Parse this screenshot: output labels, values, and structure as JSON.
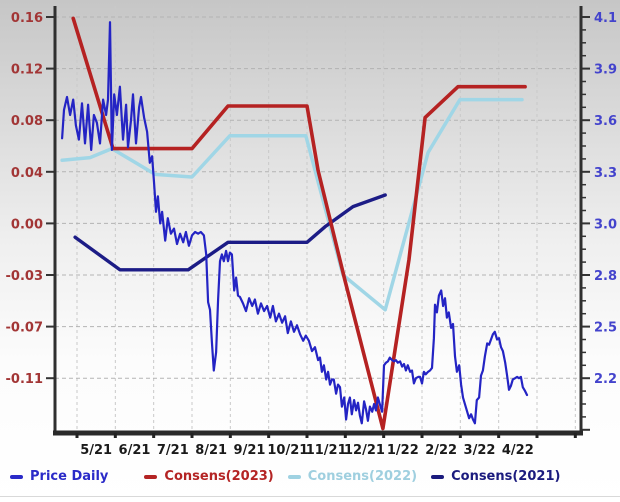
{
  "chart_data": {
    "type": "line",
    "title": "",
    "x_axis": {
      "labels": [
        "5/21",
        "6/21",
        "7/21",
        "8/21",
        "9/21",
        "10/21",
        "11/21",
        "12/21",
        "1/22",
        "2/22",
        "3/22",
        "4/22"
      ]
    },
    "y_axis_left": {
      "labels": [
        "0.16",
        "0.12",
        "0.08",
        "0.04",
        "0.00",
        "-0.03",
        "-0.07",
        "-0.11"
      ],
      "values": [
        0.16,
        0.12,
        0.08,
        0.04,
        0.0,
        -0.03,
        -0.07,
        -0.11
      ],
      "color": "#a23535"
    },
    "y_axis_right": {
      "labels": [
        "4.1",
        "3.9",
        "3.6",
        "3.3",
        "3.0",
        "2.8",
        "2.5",
        "2.2"
      ],
      "color": "#4343cc"
    },
    "grid": true,
    "legend_position": "bottom",
    "legend": [
      {
        "id": "price-daily",
        "label": "Price Daily",
        "color": "#2a2ac8",
        "text_color": "#2a2ac8"
      },
      {
        "id": "consens-2023",
        "label": "Consens(2023)",
        "color": "#b42424",
        "text_color": "#b42424"
      },
      {
        "id": "consens-2022",
        "label": "Consens(2022)",
        "color": "#9fd2e2",
        "text_color": "#9fcfdf"
      },
      {
        "id": "consens-2021",
        "label": "Consens(2021)",
        "color": "#1b1b7e",
        "text_color": "#1b1b7e"
      }
    ],
    "series": [
      {
        "id": "consens-2022",
        "name": "Consens(2022)",
        "color": "#a0d6e6",
        "width": 3.5,
        "points": [
          [
            -0.39,
            0.049
          ],
          [
            0.34,
            0.051
          ],
          [
            0.91,
            0.058
          ],
          [
            2.04,
            0.038
          ],
          [
            3.0,
            0.036
          ],
          [
            3.99,
            0.068
          ],
          [
            5.97,
            0.068
          ],
          [
            6.94,
            -0.03
          ],
          [
            8.04,
            -0.057
          ],
          [
            9.16,
            0.055
          ],
          [
            9.99,
            0.096
          ],
          [
            11.61,
            0.096
          ]
        ]
      },
      {
        "id": "consens-2021",
        "name": "Consens(2021)",
        "color": "#1c1c86",
        "width": 3.4,
        "points": [
          [
            -0.05,
            -0.008
          ],
          [
            1.12,
            -0.027
          ],
          [
            2.9,
            -0.027
          ],
          [
            3.94,
            -0.011
          ],
          [
            6.0,
            -0.011
          ],
          [
            6.47,
            -0.002
          ],
          [
            7.2,
            0.013
          ],
          [
            8.04,
            0.022
          ]
        ]
      },
      {
        "id": "consens-2023",
        "name": "Consens(2023)",
        "color": "#b52222",
        "width": 3.6,
        "points": [
          [
            -0.1,
            0.159
          ],
          [
            0.94,
            0.058
          ],
          [
            3.0,
            0.058
          ],
          [
            3.94,
            0.091
          ],
          [
            6.0,
            0.091
          ],
          [
            6.29,
            0.041
          ],
          [
            6.99,
            -0.034
          ],
          [
            7.98,
            -0.149
          ],
          [
            8.66,
            -0.021
          ],
          [
            9.08,
            0.082
          ],
          [
            9.94,
            0.106
          ],
          [
            11.69,
            0.106
          ]
        ]
      },
      {
        "id": "price-daily",
        "name": "Price Daily",
        "color": "#2424c4",
        "width": 2.2,
        "points": [
          [
            -0.39,
            0.066
          ],
          [
            -0.34,
            0.088
          ],
          [
            -0.26,
            0.098
          ],
          [
            -0.18,
            0.084
          ],
          [
            -0.1,
            0.096
          ],
          [
            -0.03,
            0.076
          ],
          [
            0.05,
            0.065
          ],
          [
            0.13,
            0.093
          ],
          [
            0.21,
            0.062
          ],
          [
            0.29,
            0.092
          ],
          [
            0.37,
            0.057
          ],
          [
            0.44,
            0.084
          ],
          [
            0.52,
            0.078
          ],
          [
            0.6,
            0.062
          ],
          [
            0.68,
            0.096
          ],
          [
            0.76,
            0.084
          ],
          [
            0.81,
            0.096
          ],
          [
            0.86,
            0.156
          ],
          [
            0.91,
            0.057
          ],
          [
            0.97,
            0.1
          ],
          [
            1.04,
            0.084
          ],
          [
            1.12,
            0.106
          ],
          [
            1.2,
            0.065
          ],
          [
            1.28,
            0.092
          ],
          [
            1.33,
            0.059
          ],
          [
            1.41,
            0.08
          ],
          [
            1.46,
            0.1
          ],
          [
            1.54,
            0.062
          ],
          [
            1.62,
            0.09
          ],
          [
            1.67,
            0.098
          ],
          [
            1.75,
            0.082
          ],
          [
            1.83,
            0.071
          ],
          [
            1.9,
            0.047
          ],
          [
            1.96,
            0.052
          ],
          [
            2.01,
            0.032
          ],
          [
            2.06,
            0.009
          ],
          [
            2.11,
            0.021
          ],
          [
            2.17,
            0.0
          ],
          [
            2.22,
            0.009
          ],
          [
            2.3,
            -0.01
          ],
          [
            2.37,
            0.004
          ],
          [
            2.45,
            -0.006
          ],
          [
            2.53,
            -0.003
          ],
          [
            2.61,
            -0.012
          ],
          [
            2.69,
            -0.006
          ],
          [
            2.77,
            -0.011
          ],
          [
            2.84,
            -0.005
          ],
          [
            2.92,
            -0.013
          ],
          [
            3.0,
            -0.007
          ],
          [
            3.08,
            -0.005
          ],
          [
            3.16,
            -0.006
          ],
          [
            3.23,
            -0.005
          ],
          [
            3.31,
            -0.007
          ],
          [
            3.37,
            -0.018
          ],
          [
            3.42,
            -0.051
          ],
          [
            3.47,
            -0.057
          ],
          [
            3.52,
            -0.082
          ],
          [
            3.57,
            -0.104
          ],
          [
            3.63,
            -0.09
          ],
          [
            3.68,
            -0.049
          ],
          [
            3.73,
            -0.022
          ],
          [
            3.78,
            -0.018
          ],
          [
            3.83,
            -0.022
          ],
          [
            3.89,
            -0.016
          ],
          [
            3.94,
            -0.022
          ],
          [
            3.99,
            -0.017
          ],
          [
            4.04,
            -0.018
          ],
          [
            4.1,
            -0.042
          ],
          [
            4.15,
            -0.032
          ],
          [
            4.2,
            -0.046
          ],
          [
            4.25,
            -0.047
          ],
          [
            4.33,
            -0.052
          ],
          [
            4.41,
            -0.058
          ],
          [
            4.49,
            -0.048
          ],
          [
            4.57,
            -0.054
          ],
          [
            4.64,
            -0.049
          ],
          [
            4.72,
            -0.06
          ],
          [
            4.8,
            -0.052
          ],
          [
            4.88,
            -0.058
          ],
          [
            4.96,
            -0.054
          ],
          [
            5.04,
            -0.063
          ],
          [
            5.11,
            -0.054
          ],
          [
            5.19,
            -0.066
          ],
          [
            5.27,
            -0.06
          ],
          [
            5.35,
            -0.067
          ],
          [
            5.43,
            -0.062
          ],
          [
            5.5,
            -0.075
          ],
          [
            5.58,
            -0.066
          ],
          [
            5.66,
            -0.074
          ],
          [
            5.74,
            -0.069
          ],
          [
            5.82,
            -0.076
          ],
          [
            5.9,
            -0.081
          ],
          [
            5.97,
            -0.077
          ],
          [
            6.05,
            -0.081
          ],
          [
            6.13,
            -0.089
          ],
          [
            6.21,
            -0.086
          ],
          [
            6.29,
            -0.096
          ],
          [
            6.34,
            -0.094
          ],
          [
            6.39,
            -0.105
          ],
          [
            6.44,
            -0.1
          ],
          [
            6.5,
            -0.111
          ],
          [
            6.55,
            -0.105
          ],
          [
            6.6,
            -0.115
          ],
          [
            6.65,
            -0.111
          ],
          [
            6.7,
            -0.111
          ],
          [
            6.76,
            -0.122
          ],
          [
            6.81,
            -0.115
          ],
          [
            6.86,
            -0.117
          ],
          [
            6.91,
            -0.132
          ],
          [
            6.97,
            -0.125
          ],
          [
            7.02,
            -0.142
          ],
          [
            7.07,
            -0.13
          ],
          [
            7.12,
            -0.125
          ],
          [
            7.17,
            -0.138
          ],
          [
            7.23,
            -0.127
          ],
          [
            7.28,
            -0.135
          ],
          [
            7.33,
            -0.129
          ],
          [
            7.38,
            -0.139
          ],
          [
            7.43,
            -0.145
          ],
          [
            7.49,
            -0.128
          ],
          [
            7.54,
            -0.134
          ],
          [
            7.59,
            -0.143
          ],
          [
            7.64,
            -0.132
          ],
          [
            7.7,
            -0.136
          ],
          [
            7.75,
            -0.13
          ],
          [
            7.8,
            -0.135
          ],
          [
            7.85,
            -0.125
          ],
          [
            7.9,
            -0.13
          ],
          [
            7.96,
            -0.136
          ],
          [
            8.01,
            -0.1
          ],
          [
            8.06,
            -0.098
          ],
          [
            8.11,
            -0.097
          ],
          [
            8.16,
            -0.094
          ],
          [
            8.22,
            -0.096
          ],
          [
            8.27,
            -0.097
          ],
          [
            8.32,
            -0.096
          ],
          [
            8.37,
            -0.098
          ],
          [
            8.43,
            -0.097
          ],
          [
            8.48,
            -0.101
          ],
          [
            8.53,
            -0.099
          ],
          [
            8.58,
            -0.104
          ],
          [
            8.63,
            -0.1
          ],
          [
            8.69,
            -0.105
          ],
          [
            8.74,
            -0.104
          ],
          [
            8.79,
            -0.114
          ],
          [
            8.84,
            -0.11
          ],
          [
            8.9,
            -0.109
          ],
          [
            8.95,
            -0.109
          ],
          [
            9.0,
            -0.114
          ],
          [
            9.05,
            -0.105
          ],
          [
            9.1,
            -0.107
          ],
          [
            9.16,
            -0.105
          ],
          [
            9.21,
            -0.104
          ],
          [
            9.26,
            -0.102
          ],
          [
            9.31,
            -0.079
          ],
          [
            9.34,
            -0.053
          ],
          [
            9.39,
            -0.059
          ],
          [
            9.44,
            -0.046
          ],
          [
            9.5,
            -0.042
          ],
          [
            9.55,
            -0.054
          ],
          [
            9.6,
            -0.048
          ],
          [
            9.65,
            -0.063
          ],
          [
            9.7,
            -0.059
          ],
          [
            9.76,
            -0.071
          ],
          [
            9.81,
            -0.068
          ],
          [
            9.86,
            -0.093
          ],
          [
            9.91,
            -0.105
          ],
          [
            9.97,
            -0.1
          ],
          [
            10.02,
            -0.115
          ],
          [
            10.07,
            -0.125
          ],
          [
            10.12,
            -0.13
          ],
          [
            10.17,
            -0.135
          ],
          [
            10.23,
            -0.141
          ],
          [
            10.28,
            -0.138
          ],
          [
            10.33,
            -0.142
          ],
          [
            10.38,
            -0.145
          ],
          [
            10.43,
            -0.127
          ],
          [
            10.49,
            -0.125
          ],
          [
            10.54,
            -0.108
          ],
          [
            10.59,
            -0.104
          ],
          [
            10.64,
            -0.093
          ],
          [
            10.7,
            -0.083
          ],
          [
            10.75,
            -0.084
          ],
          [
            10.8,
            -0.08
          ],
          [
            10.85,
            -0.076
          ],
          [
            10.9,
            -0.074
          ],
          [
            10.96,
            -0.08
          ],
          [
            11.01,
            -0.079
          ],
          [
            11.06,
            -0.086
          ],
          [
            11.11,
            -0.089
          ],
          [
            11.17,
            -0.098
          ],
          [
            11.22,
            -0.108
          ],
          [
            11.27,
            -0.119
          ],
          [
            11.32,
            -0.116
          ],
          [
            11.37,
            -0.111
          ],
          [
            11.43,
            -0.11
          ],
          [
            11.48,
            -0.109
          ],
          [
            11.53,
            -0.11
          ],
          [
            11.58,
            -0.109
          ],
          [
            11.63,
            -0.117
          ],
          [
            11.69,
            -0.12
          ],
          [
            11.74,
            -0.123
          ]
        ]
      }
    ]
  }
}
